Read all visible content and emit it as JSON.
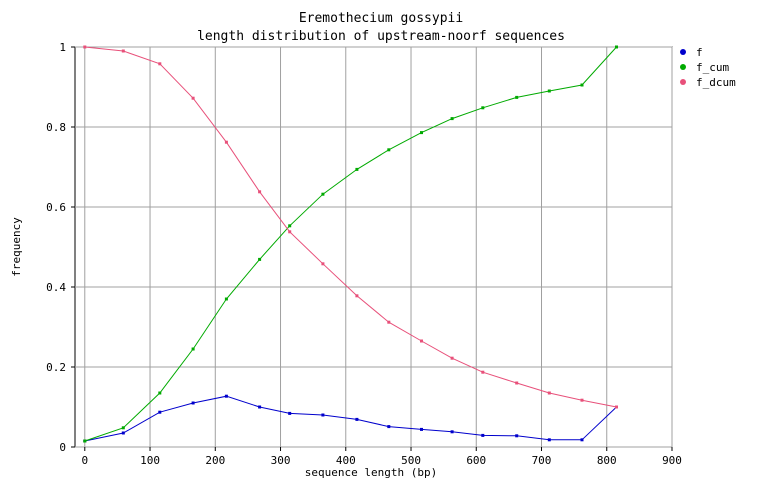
{
  "chart_data": {
    "type": "line",
    "title": "Eremothecium gossypii",
    "subtitle": "length distribution of upstream-noorf sequences",
    "xlabel": "sequence length (bp)",
    "ylabel": "frequency",
    "xlim": [
      -15,
      900
    ],
    "ylim": [
      0,
      1
    ],
    "x_ticks": [
      0,
      100,
      200,
      300,
      400,
      500,
      600,
      700,
      800,
      900
    ],
    "y_ticks": [
      0,
      0.2,
      0.4,
      0.6,
      0.8,
      1
    ],
    "grid": true,
    "legend_position": "top-right",
    "x": [
      0,
      59,
      115,
      166,
      217,
      268,
      314,
      365,
      417,
      466,
      516,
      563,
      610,
      662,
      712,
      762,
      815
    ],
    "series": [
      {
        "name": "f",
        "color": "#0000cc",
        "values": [
          0.015,
          0.035,
          0.087,
          0.11,
          0.127,
          0.1,
          0.084,
          0.08,
          0.069,
          0.051,
          0.044,
          0.038,
          0.029,
          0.028,
          0.018,
          0.018,
          0.1
        ]
      },
      {
        "name": "f_cum",
        "color": "#00aa00",
        "values": [
          0.015,
          0.048,
          0.135,
          0.245,
          0.37,
          0.469,
          0.553,
          0.632,
          0.694,
          0.743,
          0.786,
          0.821,
          0.848,
          0.874,
          0.89,
          0.905,
          1.0
        ]
      },
      {
        "name": "f_dcum",
        "color": "#e8507a",
        "values": [
          1.0,
          0.99,
          0.958,
          0.872,
          0.762,
          0.638,
          0.538,
          0.458,
          0.378,
          0.312,
          0.265,
          0.222,
          0.187,
          0.16,
          0.135,
          0.117,
          0.1
        ]
      }
    ]
  }
}
